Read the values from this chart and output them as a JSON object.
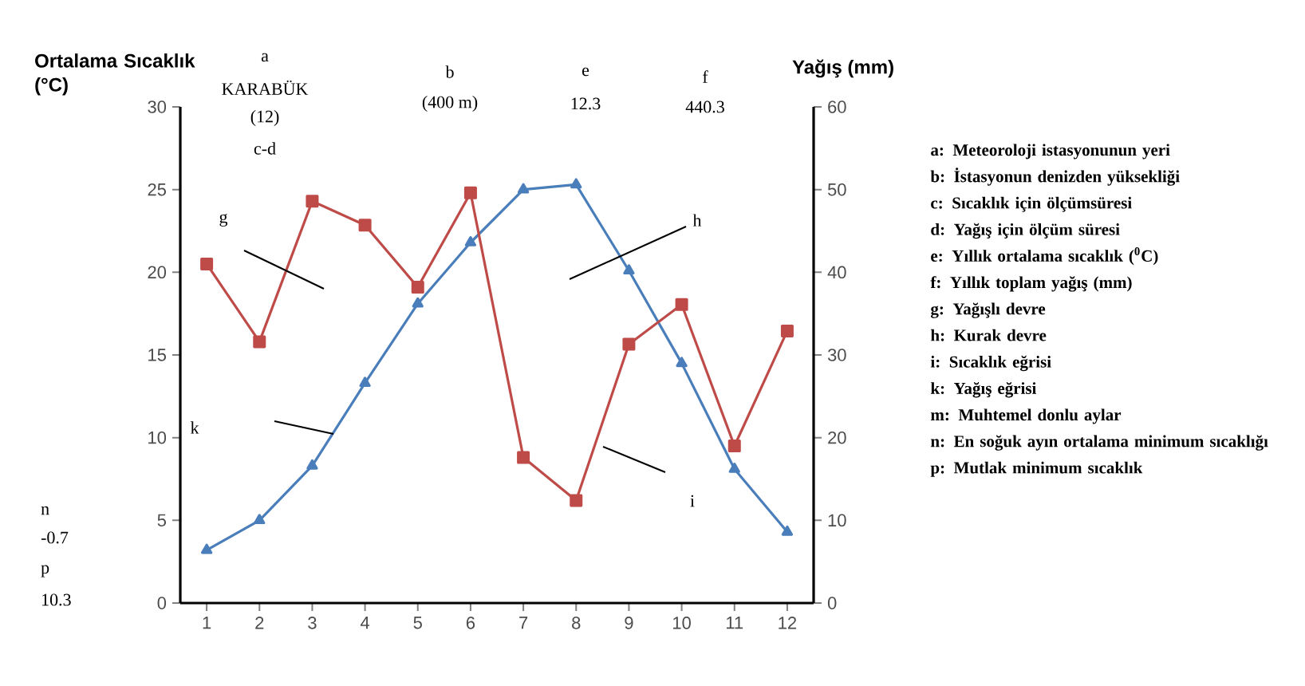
{
  "chart_data": {
    "type": "line",
    "ylabel": "Ortalama Sıcaklık (°C)",
    "y2label": "Yağış (mm)",
    "categories": [
      "1",
      "2",
      "3",
      "4",
      "5",
      "6",
      "7",
      "8",
      "9",
      "10",
      "11",
      "12"
    ],
    "ylim": [
      0,
      30
    ],
    "yticks": [
      0,
      5,
      10,
      15,
      20,
      25,
      30
    ],
    "y2lim": [
      0,
      60
    ],
    "y2ticks": [
      0,
      10,
      20,
      30,
      40,
      50,
      60
    ],
    "series": [
      {
        "color": "#4a7ebb",
        "marker": "triangle",
        "values": [
          3.2,
          5.0,
          8.3,
          13.3,
          18.1,
          21.8,
          25.0,
          25.3,
          20.1,
          14.5,
          8.1,
          4.3
        ]
      },
      {
        "color": "#be4b48",
        "marker": "square",
        "axis": "y2",
        "values": [
          41,
          31.6,
          48.6,
          45.7,
          38.2,
          49.6,
          17.6,
          12.4,
          31.3,
          36.1,
          19,
          32.9
        ]
      }
    ],
    "annotations": [
      "a",
      "KARABÜK",
      "(12)",
      "c-d",
      "b",
      "(400 m)",
      "e",
      "12.3",
      "f",
      "440.3",
      "g",
      "h",
      "k",
      "i",
      "n",
      "-0.7",
      "p",
      "10.3",
      "a: Meteoroloji istasyonunun yeri",
      "b: İstasyonun denizden yüksekliği",
      "c: Sıcaklık için ölçümsüresi",
      "d: Yağış için ölçüm süresi",
      "e: Yıllık ortalama sıcaklık ($^{0}$C)",
      "f: Yıllık toplam yağış (mm)",
      "g: Yağışlı devre",
      "h: Kurak devre",
      "i: Sıcaklık eğrisi",
      "k: Yağış eğrisi",
      "m: Muhtemel donlu aylar",
      "n: En soğuk ayın ortalama minimum sıcaklığı",
      "p: Mutlak minimum sıcaklık"
    ]
  }
}
